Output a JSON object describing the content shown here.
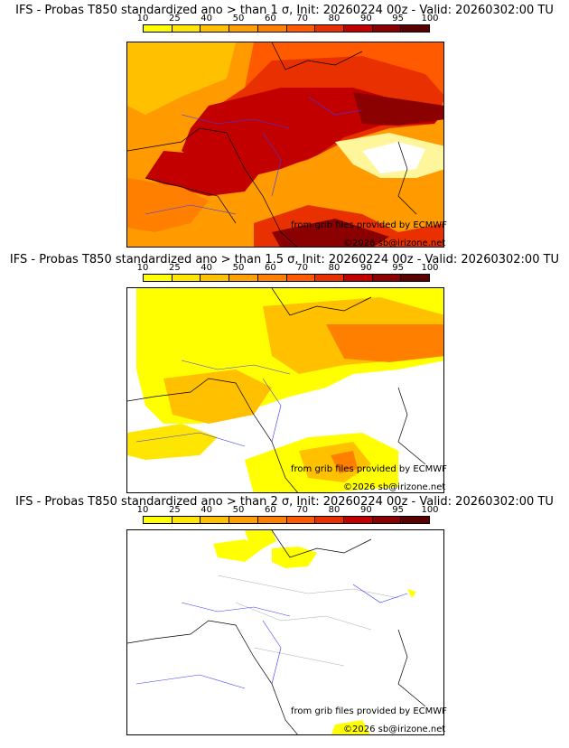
{
  "colorbar": {
    "ticks": [
      "10",
      "25",
      "40",
      "50",
      "60",
      "70",
      "80",
      "90",
      "95",
      "100"
    ],
    "colors": [
      "#ffff00",
      "#ffe600",
      "#ffc000",
      "#ff9f00",
      "#ff8000",
      "#ff5a00",
      "#e83000",
      "#c20000",
      "#8b0000",
      "#5a0000"
    ]
  },
  "panels": [
    {
      "title": "IFS - Probas T850  standardized ano > than 1 σ, Init: 20260224 00z - Valid: 20260302:00 TU",
      "credit1": "from grib files provided by ECMWF",
      "credit2": "©2026 sb@irizone.net"
    },
    {
      "title": "IFS - Probas T850  standardized ano > than 1.5 σ, Init: 20260224 00z - Valid: 20260302:00 TU",
      "credit1": "from grib files provided by ECMWF",
      "credit2": "©2026 sb@irizone.net"
    },
    {
      "title": "IFS - Probas T850  standardized ano > than 2 σ, Init: 20260224 00z - Valid: 20260302:00 TU",
      "credit1": "from grib files provided by ECMWF",
      "credit2": "©2026 sb@irizone.net"
    }
  ]
}
